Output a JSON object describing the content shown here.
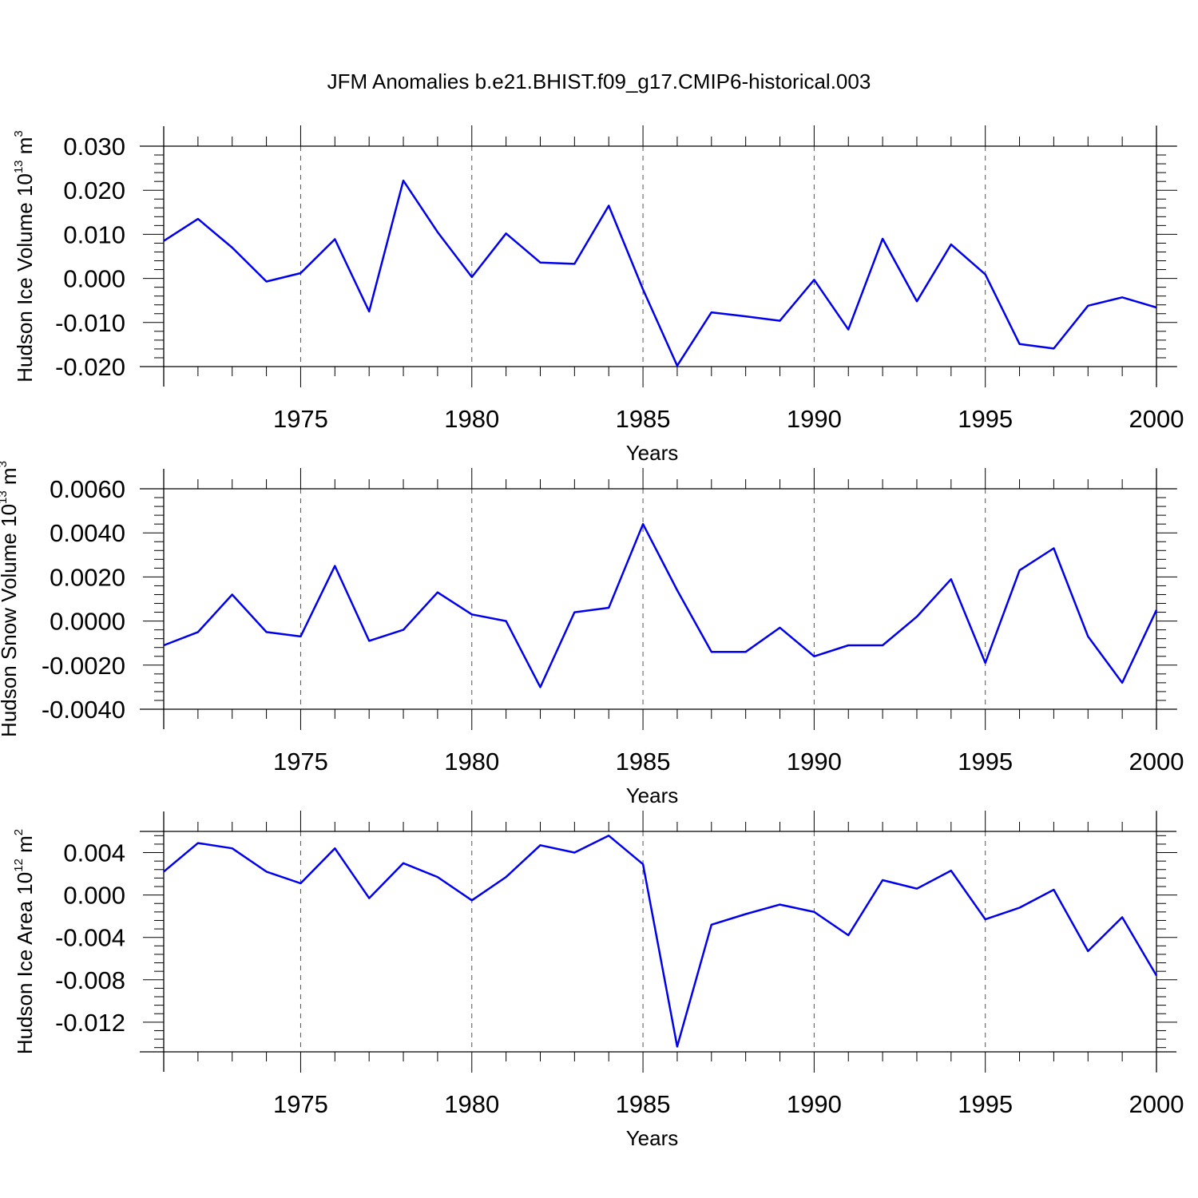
{
  "title": "JFM Anomalies b.e21.BHIST.f09_g17.CMIP6-historical.003",
  "colors": {
    "line": "#0000ee",
    "grid": "#555555",
    "axis": "#000000"
  },
  "chart_data": [
    {
      "type": "line",
      "ylabel_main": "Hudson Ice Volume 10",
      "ylabel_exp": "13",
      "ylabel_unit": " m",
      "ylabel_unit_exp": "3",
      "xlabel": "Years",
      "xlim": [
        1971,
        2000
      ],
      "ylim": [
        -0.02,
        0.03
      ],
      "yticks": [
        -0.02,
        -0.01,
        0.0,
        0.01,
        0.02,
        0.03
      ],
      "yticklabels": [
        "-0.020",
        "-0.010",
        "0.000",
        "0.010",
        "0.020",
        "0.030"
      ],
      "xticks": [
        1975,
        1980,
        1985,
        1990,
        1995,
        2000
      ],
      "xticklabels": [
        "1975",
        "1980",
        "1985",
        "1990",
        "1995",
        "2000"
      ],
      "x": [
        1971,
        1972,
        1973,
        1974,
        1975,
        1976,
        1977,
        1978,
        1979,
        1980,
        1981,
        1982,
        1983,
        1984,
        1985,
        1986,
        1987,
        1988,
        1989,
        1990,
        1991,
        1992,
        1993,
        1994,
        1995,
        1996,
        1997,
        1998,
        1999,
        2000
      ],
      "series": [
        {
          "values": [
            0.0085,
            0.0135,
            0.007,
            -0.0007,
            0.0012,
            0.0089,
            -0.0075,
            0.0222,
            0.0105,
            0.0003,
            0.0102,
            0.0036,
            0.0033,
            0.0165,
            -0.0025,
            -0.0198,
            -0.0077,
            -0.0086,
            -0.0096,
            -0.0003,
            -0.0116,
            0.009,
            -0.0052,
            0.0077,
            0.0009,
            -0.0149,
            -0.0159,
            -0.0062,
            -0.0043,
            -0.0066
          ]
        }
      ]
    },
    {
      "type": "line",
      "ylabel_main": "Hudson Snow Volume 10",
      "ylabel_exp": "13",
      "ylabel_unit": " m",
      "ylabel_unit_exp": "3",
      "xlabel": "Years",
      "xlim": [
        1971,
        2000
      ],
      "ylim": [
        -0.004,
        0.006
      ],
      "yticks": [
        -0.004,
        -0.002,
        0.0,
        0.002,
        0.004,
        0.006
      ],
      "yticklabels": [
        "-0.0040",
        "-0.0020",
        "0.0000",
        "0.0020",
        "0.0040",
        "0.0060"
      ],
      "xticks": [
        1975,
        1980,
        1985,
        1990,
        1995,
        2000
      ],
      "xticklabels": [
        "1975",
        "1980",
        "1985",
        "1990",
        "1995",
        "2000"
      ],
      "x": [
        1971,
        1972,
        1973,
        1974,
        1975,
        1976,
        1977,
        1978,
        1979,
        1980,
        1981,
        1982,
        1983,
        1984,
        1985,
        1986,
        1987,
        1988,
        1989,
        1990,
        1991,
        1992,
        1993,
        1994,
        1995,
        1996,
        1997,
        1998,
        1999,
        2000
      ],
      "series": [
        {
          "values": [
            -0.0011,
            -0.0005,
            0.0012,
            -0.0005,
            -0.0007,
            0.0025,
            -0.0009,
            -0.0004,
            0.0013,
            0.0003,
            0.0,
            -0.003,
            0.0004,
            0.0006,
            0.0044,
            0.0014,
            -0.0014,
            -0.0014,
            -0.0003,
            -0.0016,
            -0.0011,
            -0.0011,
            0.0002,
            0.0019,
            -0.0019,
            0.0023,
            0.0033,
            -0.0007,
            -0.0028,
            0.0005
          ]
        }
      ]
    },
    {
      "type": "line",
      "ylabel_main": "Hudson Ice Area 10",
      "ylabel_exp": "12",
      "ylabel_unit": " m",
      "ylabel_unit_exp": "2",
      "xlabel": "Years",
      "xlim": [
        1971,
        2000
      ],
      "ylim": [
        -0.0148,
        0.006
      ],
      "yticks": [
        -0.012,
        -0.008,
        -0.004,
        0.0,
        0.004
      ],
      "yticklabels": [
        "-0.012",
        "-0.008",
        "-0.004",
        "0.000",
        "0.004"
      ],
      "xticks": [
        1975,
        1980,
        1985,
        1990,
        1995,
        2000
      ],
      "xticklabels": [
        "1975",
        "1980",
        "1985",
        "1990",
        "1995",
        "2000"
      ],
      "x": [
        1971,
        1972,
        1973,
        1974,
        1975,
        1976,
        1977,
        1978,
        1979,
        1980,
        1981,
        1982,
        1983,
        1984,
        1985,
        1986,
        1987,
        1988,
        1989,
        1990,
        1991,
        1992,
        1993,
        1994,
        1995,
        1996,
        1997,
        1998,
        1999,
        2000
      ],
      "series": [
        {
          "values": [
            0.0022,
            0.0049,
            0.0044,
            0.0022,
            0.0011,
            0.0044,
            -0.0003,
            0.003,
            0.0017,
            -0.0005,
            0.0017,
            0.0047,
            0.004,
            0.0056,
            0.0029,
            -0.0143,
            -0.0028,
            -0.0018,
            -0.0009,
            -0.0016,
            -0.0038,
            0.0014,
            0.0006,
            0.0023,
            -0.0023,
            -0.0012,
            0.0005,
            -0.0053,
            -0.0021,
            -0.0076
          ]
        }
      ]
    }
  ]
}
